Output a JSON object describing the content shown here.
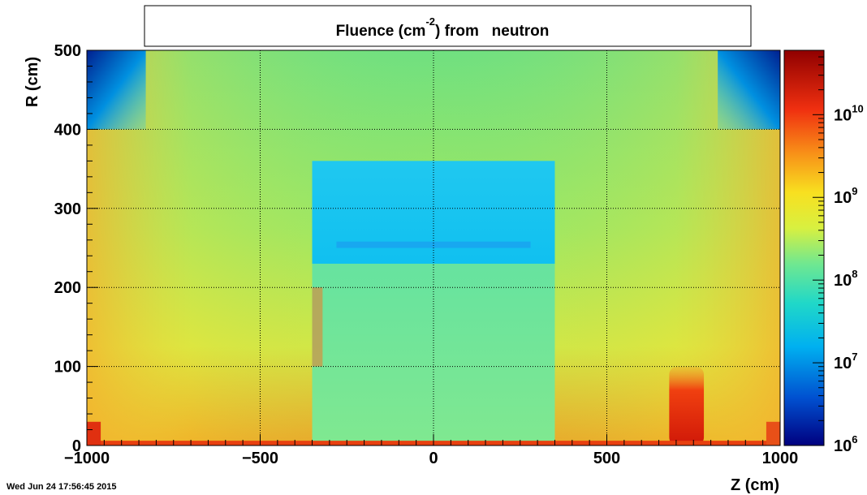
{
  "chart_data": {
    "type": "heatmap",
    "title": "Fluence (cm",
    "title_superscript": "-2",
    "title_suffix": ") from   neutron",
    "xlabel": "Z (cm)",
    "ylabel": "R (cm)",
    "xlim": [
      -1000,
      1000
    ],
    "ylim": [
      0,
      500
    ],
    "x_ticks": [
      -1000,
      -500,
      0,
      500,
      1000
    ],
    "x_tick_labels": [
      "−1000",
      "−500",
      "0",
      "500",
      "1000"
    ],
    "y_ticks": [
      0,
      100,
      200,
      300,
      400,
      500
    ],
    "y_tick_labels": [
      "0",
      "100",
      "200",
      "300",
      "400",
      "500"
    ],
    "grid": true,
    "colorbar": {
      "scale": "log",
      "range": [
        1000000.0,
        60000000000.0
      ],
      "labels": [
        {
          "base": "10",
          "exp": "6",
          "value": 1000000.0
        },
        {
          "base": "10",
          "exp": "7",
          "value": 10000000.0
        },
        {
          "base": "10",
          "exp": "8",
          "value": 100000000.0
        },
        {
          "base": "10",
          "exp": "9",
          "value": 1000000000.0
        },
        {
          "base": "10",
          "exp": "10",
          "value": 10000000000.0
        }
      ]
    },
    "regions": [
      {
        "name": "barrel-inner-volume",
        "z": [
          -350,
          350
        ],
        "r": [
          0,
          360
        ],
        "log10_fluence": 8.2
      },
      {
        "name": "calorimeter-band",
        "z": [
          -350,
          350
        ],
        "r": [
          230,
          360
        ],
        "log10_fluence": 7.5
      },
      {
        "name": "thin-layer",
        "z": [
          -280,
          280
        ],
        "r": [
          250,
          258
        ],
        "log10_fluence": 7.3
      },
      {
        "name": "corner-upper-left",
        "z": [
          -1000,
          -830
        ],
        "r": [
          400,
          500
        ],
        "log10_fluence": 6.5
      },
      {
        "name": "corner-upper-right",
        "z": [
          820,
          1000
        ],
        "r": [
          400,
          500
        ],
        "log10_fluence": 6.5
      },
      {
        "name": "hotspot-forward",
        "z": [
          680,
          780
        ],
        "r": [
          0,
          100
        ],
        "log10_fluence": 10.0
      },
      {
        "name": "beamline",
        "z": [
          -1000,
          1000
        ],
        "r": [
          0,
          6
        ],
        "log10_fluence": 10.0
      },
      {
        "name": "endcap-left",
        "z": [
          -1000,
          -960
        ],
        "r": [
          0,
          30
        ],
        "log10_fluence": 10.0
      },
      {
        "name": "endcap-right",
        "z": [
          960,
          1000
        ],
        "r": [
          0,
          30
        ],
        "log10_fluence": 9.8
      },
      {
        "name": "strip-left",
        "z": [
          -350,
          -320
        ],
        "r": [
          100,
          200
        ],
        "log10_fluence": 9.4
      }
    ]
  },
  "footer": {
    "timestamp": "Wed Jun 24 17:56:45 2015"
  }
}
